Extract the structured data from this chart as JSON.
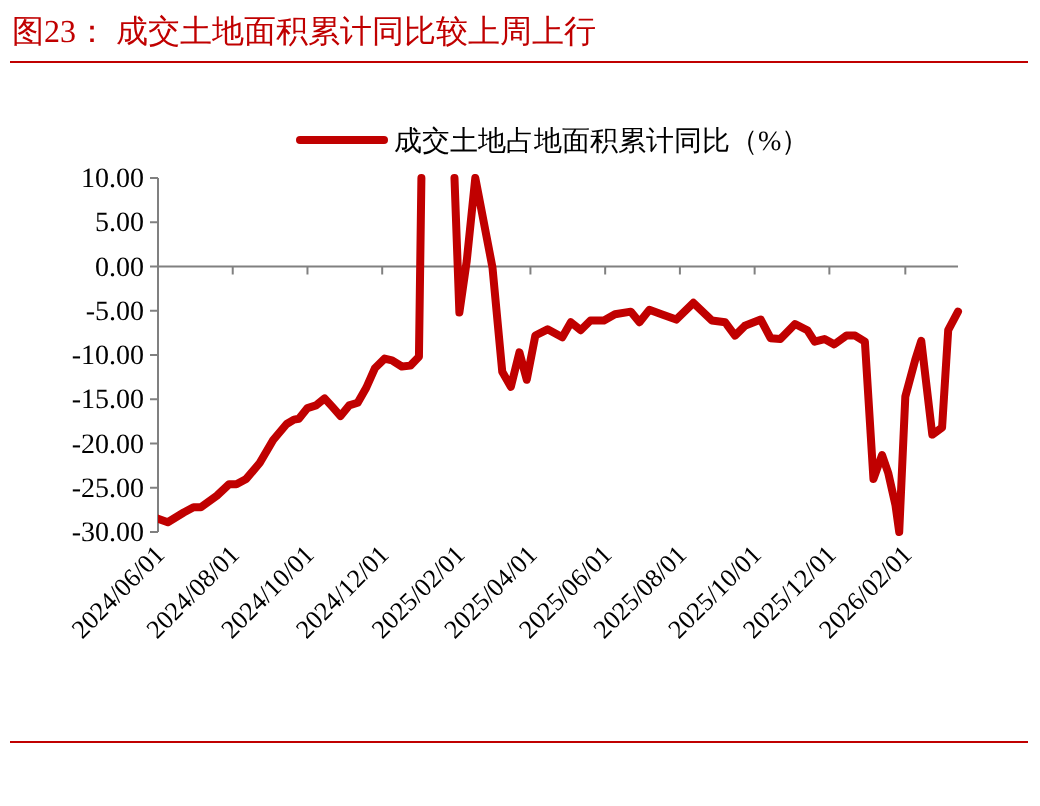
{
  "chart_data": {
    "type": "line",
    "title": "图23： 成交土地面积累计同比较上周上行",
    "legend": "top",
    "marker": "none",
    "line_style": "solid",
    "series": [
      {
        "name": "成交土地占地面积累计同比（%）",
        "color": "#c00000",
        "x": [
          "2024-06-01",
          "2024-06-09",
          "2024-06-22",
          "2024-06-30",
          "2024-07-06",
          "2024-07-19",
          "2024-07-29",
          "2024-08-04",
          "2024-08-12",
          "2024-08-23",
          "2024-09-03",
          "2024-09-14",
          "2024-09-20",
          "2024-09-24",
          "2024-10-01",
          "2024-10-08",
          "2024-10-15",
          "2024-10-21",
          "2024-10-28",
          "2024-11-04",
          "2024-11-11",
          "2024-11-18",
          "2024-11-25",
          "2024-12-03",
          "2024-12-09",
          "2024-12-17",
          "2024-12-24",
          "2024-12-31",
          "2025-01-02"
        ],
        "values": [
          -28.5,
          -28.9,
          -27.8,
          -27.2,
          -27.2,
          -25.9,
          -24.6,
          -24.6,
          -24.0,
          -22.2,
          -19.6,
          -17.8,
          -17.3,
          -17.2,
          -16.0,
          -15.7,
          -14.9,
          -15.8,
          -16.9,
          -15.7,
          -15.4,
          -13.7,
          -11.5,
          -10.4,
          -10.6,
          -11.3,
          -11.2,
          -10.2,
          10
        ]
      },
      {
        "color": "#c00000",
        "x": [
          "2025-01-29",
          "2025-02-02",
          "2025-02-08",
          "2025-02-15",
          "2025-03-01",
          "2025-03-09",
          "2025-03-16",
          "2025-03-23",
          "2025-03-29",
          "2025-04-05",
          "2025-04-15",
          "2025-04-27",
          "2025-05-04",
          "2025-05-12",
          "2025-05-20",
          "2025-05-31",
          "2025-06-09",
          "2025-06-22",
          "2025-06-29",
          "2025-07-07",
          "2025-07-17",
          "2025-07-29",
          "2025-08-12",
          "2025-08-27",
          "2025-09-07",
          "2025-09-15",
          "2025-09-23",
          "2025-10-06",
          "2025-10-14",
          "2025-10-22",
          "2025-11-03",
          "2025-11-13",
          "2025-11-19",
          "2025-11-27",
          "2025-12-05",
          "2025-12-15",
          "2025-12-22",
          "2025-12-30",
          "2026-01-06",
          "2026-01-13",
          "2026-01-18",
          "2026-01-24",
          "2026-01-27",
          "2026-02-01",
          "2026-02-09",
          "2026-02-14",
          "2026-02-23",
          "2026-03-03",
          "2026-03-08",
          "2026-03-16"
        ],
        "values": [
          10,
          -5.2,
          0.6,
          10,
          -0.1,
          -11.9,
          -13.6,
          -9.7,
          -12.8,
          -7.8,
          -7.1,
          -8.0,
          -6.3,
          -7.2,
          -6.1,
          -6.1,
          -5.4,
          -5.1,
          -6.3,
          -4.9,
          -5.4,
          -6.0,
          -4.1,
          -6.1,
          -6.3,
          -7.8,
          -6.7,
          -6.0,
          -8.1,
          -8.2,
          -6.5,
          -7.2,
          -8.5,
          -8.2,
          -8.8,
          -7.8,
          -7.8,
          -8.5,
          -24.0,
          -21.3,
          -23.3,
          -27.0,
          -30,
          -14.7,
          -10.6,
          -8.4,
          -19.0,
          -18.2,
          -7.2,
          -5.1
        ]
      }
    ],
    "xlim": [
      "2024-06-01",
      "2026-03-16"
    ],
    "xticks": [
      {
        "value": "2024-06-01",
        "label": "2024/06/01"
      },
      {
        "value": "2024-08-01",
        "label": "2024/08/01"
      },
      {
        "value": "2024-10-01",
        "label": "2024/10/01"
      },
      {
        "value": "2024-12-01",
        "label": "2024/12/01"
      },
      {
        "value": "2025-02-01",
        "label": "2025/02/01"
      },
      {
        "value": "2025-04-01",
        "label": "2025/04/01"
      },
      {
        "value": "2025-06-01",
        "label": "2025/06/01"
      },
      {
        "value": "2025-08-01",
        "label": "2025/08/01"
      },
      {
        "value": "2025-10-01",
        "label": "2025/10/01"
      },
      {
        "value": "2025-12-01",
        "label": "2025/12/01"
      },
      {
        "value": "2026-02-01",
        "label": "2026/02/01"
      }
    ],
    "ylim": [
      -30,
      10
    ],
    "yticks": [
      {
        "value": 10,
        "label": "10.00"
      },
      {
        "value": 5,
        "label": "5.00"
      },
      {
        "value": 0,
        "label": "0.00"
      },
      {
        "value": -5,
        "label": "-5.00"
      },
      {
        "value": -10,
        "label": "-10.00"
      },
      {
        "value": -15,
        "label": "-15.00"
      },
      {
        "value": -20,
        "label": "-20.00"
      },
      {
        "value": -25,
        "label": "-25.00"
      },
      {
        "value": -30,
        "label": "-30.00"
      }
    ]
  }
}
